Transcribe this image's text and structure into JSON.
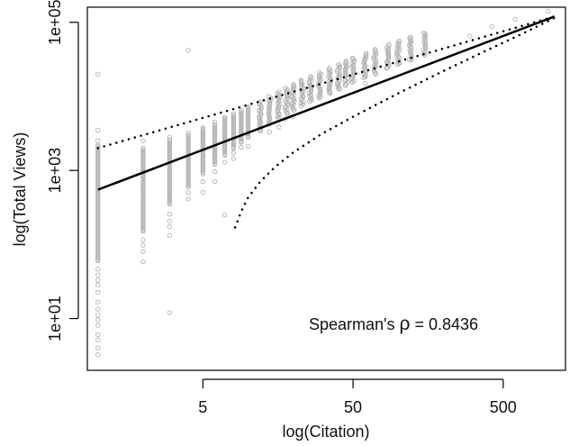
{
  "chart_data": {
    "type": "scatter",
    "xlabel": "log(Citation)",
    "ylabel": "log(Total Views)",
    "x_scale": "log",
    "y_scale": "log",
    "xlim": [
      0.85,
      1300
    ],
    "ylim": [
      2,
      160000
    ],
    "x_ticks": [
      {
        "value": 5,
        "label": "5"
      },
      {
        "value": 50,
        "label": "50"
      },
      {
        "value": 500,
        "label": "500"
      }
    ],
    "y_ticks": [
      {
        "value": 10,
        "label": "1e+01"
      },
      {
        "value": 1000,
        "label": "1e+03"
      },
      {
        "value": 100000,
        "label": "1e+05"
      }
    ],
    "annotation": {
      "prefix": "Spearman's ",
      "symbol": "ρ",
      "suffix": " = 0.8436"
    },
    "point_color": "#b3b3b3",
    "line_color": "#000000",
    "grid": false,
    "scatter_columns": [
      {
        "x": 1,
        "ymin": 3,
        "ymax": 3500,
        "dense_lo": 60,
        "dense_hi": 2200
      },
      {
        "x": 2,
        "ymin": 50,
        "ymax": 2500,
        "dense_lo": 150,
        "dense_hi": 2000
      },
      {
        "x": 3,
        "ymin": 100,
        "ymax": 2800,
        "dense_lo": 350,
        "dense_hi": 2600
      },
      {
        "x": 4,
        "ymin": 300,
        "ymax": 3200,
        "dense_lo": 600,
        "dense_hi": 3000
      },
      {
        "x": 5,
        "ymin": 500,
        "ymax": 3800,
        "dense_lo": 900,
        "dense_hi": 3600
      },
      {
        "x": 6,
        "ymin": 700,
        "ymax": 4500,
        "dense_lo": 1200,
        "dense_hi": 4200
      },
      {
        "x": 7,
        "ymin": 1000,
        "ymax": 5200,
        "dense_lo": 1600,
        "dense_hi": 5000
      },
      {
        "x": 8,
        "ymin": 1300,
        "ymax": 5800,
        "dense_lo": 2000,
        "dense_hi": 5500
      },
      {
        "x": 9,
        "ymin": 1700,
        "ymax": 6500,
        "dense_lo": 2400,
        "dense_hi": 6200
      },
      {
        "x": 10,
        "ymin": 2000,
        "ymax": 7200,
        "dense_lo": 2800,
        "dense_hi": 7000
      },
      {
        "x": 12,
        "ymin": 2600,
        "ymax": 8500,
        "dense_lo": 3400,
        "dense_hi": 8200
      },
      {
        "x": 14,
        "ymin": 3200,
        "ymax": 10000,
        "dense_lo": 4200,
        "dense_hi": 9500
      },
      {
        "x": 16,
        "ymin": 3800,
        "ymax": 11500,
        "dense_lo": 5000,
        "dense_hi": 11000
      },
      {
        "x": 18,
        "ymin": 4500,
        "ymax": 13000,
        "dense_lo": 5800,
        "dense_hi": 12500
      },
      {
        "x": 20,
        "ymin": 5000,
        "ymax": 14500,
        "dense_lo": 6500,
        "dense_hi": 14000
      },
      {
        "x": 23,
        "ymin": 6000,
        "ymax": 16500,
        "dense_lo": 7500,
        "dense_hi": 16000
      },
      {
        "x": 26,
        "ymin": 6800,
        "ymax": 18500,
        "dense_lo": 8500,
        "dense_hi": 18000
      },
      {
        "x": 30,
        "ymin": 7500,
        "ymax": 21000,
        "dense_lo": 9500,
        "dense_hi": 20000
      },
      {
        "x": 35,
        "ymin": 8500,
        "ymax": 24000,
        "dense_lo": 11000,
        "dense_hi": 23000
      },
      {
        "x": 40,
        "ymin": 10000,
        "ymax": 27000,
        "dense_lo": 12500,
        "dense_hi": 26000
      },
      {
        "x": 45,
        "ymin": 11000,
        "ymax": 30000,
        "dense_lo": 14000,
        "dense_hi": 29000
      },
      {
        "x": 50,
        "ymin": 12500,
        "ymax": 33000,
        "dense_lo": 15500,
        "dense_hi": 32000
      },
      {
        "x": 60,
        "ymin": 15000,
        "ymax": 38000,
        "dense_lo": 18000,
        "dense_hi": 37000
      },
      {
        "x": 70,
        "ymin": 17000,
        "ymax": 43000,
        "dense_lo": 20000,
        "dense_hi": 42000
      },
      {
        "x": 85,
        "ymin": 20000,
        "ymax": 50000,
        "dense_lo": 24000,
        "dense_hi": 48000
      },
      {
        "x": 100,
        "ymin": 23000,
        "ymax": 56000,
        "dense_lo": 27000,
        "dense_hi": 54000
      },
      {
        "x": 120,
        "ymin": 27000,
        "ymax": 63000,
        "dense_lo": 31000,
        "dense_hi": 61000
      },
      {
        "x": 150,
        "ymin": 32000,
        "ymax": 72000,
        "dense_lo": 36000,
        "dense_hi": 70000
      }
    ],
    "scatter_points": [
      {
        "x": 4,
        "y": 42000
      },
      {
        "x": 1,
        "y": 20000
      },
      {
        "x": 7,
        "y": 250
      },
      {
        "x": 3,
        "y": 12
      },
      {
        "x": 300,
        "y": 65000
      },
      {
        "x": 420,
        "y": 88000
      },
      {
        "x": 600,
        "y": 110000
      },
      {
        "x": 1000,
        "y": 140000
      }
    ],
    "fit_line": {
      "x": [
        1,
        1100
      ],
      "y": [
        550,
        120000
      ]
    },
    "upper_band": {
      "x": [
        1,
        1100
      ],
      "y": [
        2000,
        120000
      ]
    },
    "lower_band": {
      "x": [
        8.2,
        9,
        10,
        12,
        15,
        20,
        30,
        50,
        100,
        200,
        400,
        700,
        1100
      ],
      "y": [
        170,
        280,
        430,
        700,
        1100,
        1750,
        3000,
        5300,
        11000,
        22000,
        43000,
        73000,
        115000
      ]
    }
  }
}
